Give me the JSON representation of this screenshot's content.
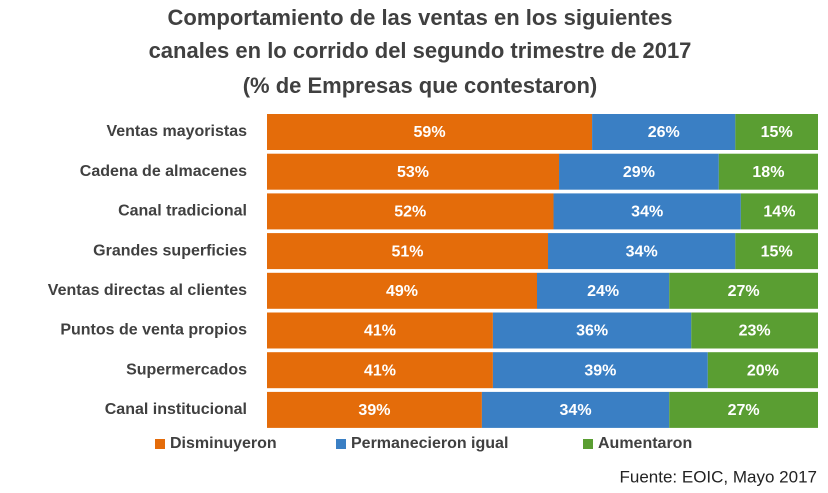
{
  "chart_data": {
    "type": "stacked-bar-horizontal",
    "title": [
      "Comportamiento de las ventas en los siguientes",
      "canales en lo corrido del segundo trimestre de 2017",
      "(% de Empresas que contestaron)"
    ],
    "categories": [
      "Ventas mayoristas",
      "Cadena de almacenes",
      "Canal tradicional",
      "Grandes superficies",
      "Ventas directas al clientes",
      "Puntos de venta propios",
      "Supermercados",
      "Canal institucional"
    ],
    "xlim": [
      0,
      100
    ],
    "series": [
      {
        "name": "Disminuyeron",
        "color": "#e46c0a",
        "values": [
          59,
          53,
          52,
          51,
          49,
          41,
          41,
          39
        ],
        "value_labels": [
          "59%",
          "53%",
          "52%",
          "51%",
          "49%",
          "41%",
          "41%",
          "39%"
        ]
      },
      {
        "name": "Permanecieron igual",
        "color": "#3a7fc4",
        "values": [
          26,
          29,
          34,
          34,
          24,
          36,
          39,
          34
        ],
        "value_labels": [
          "26%",
          "29%",
          "34%",
          "34%",
          "24%",
          "36%",
          "39%",
          "34%"
        ]
      },
      {
        "name": "Aumentaron",
        "color": "#5a9e32",
        "values": [
          15,
          18,
          14,
          15,
          27,
          23,
          20,
          27
        ],
        "value_labels": [
          "15%",
          "18%",
          "14%",
          "15%",
          "27%",
          "23%",
          "20%",
          "27%"
        ]
      }
    ],
    "legend": "bottom",
    "source": "Fuente: EOIC, Mayo 2017"
  }
}
